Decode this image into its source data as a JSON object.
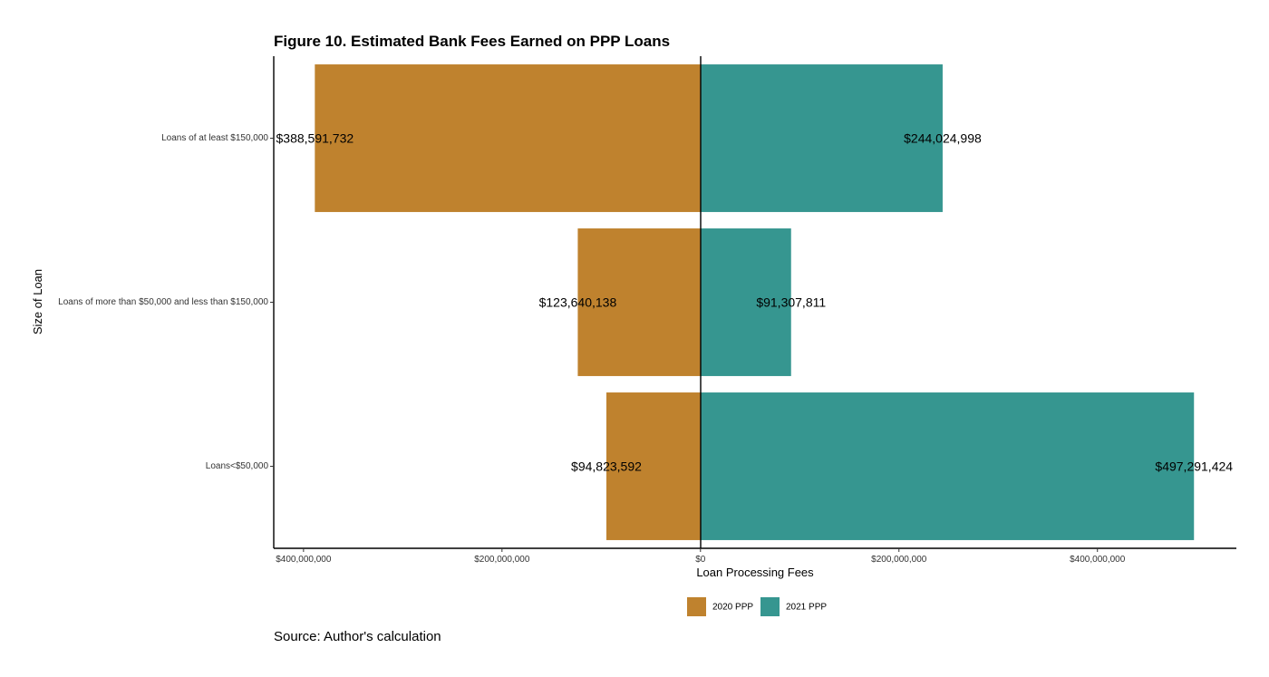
{
  "chart_data": {
    "type": "bar",
    "orientation": "horizontal",
    "layout": "diverging",
    "title": "Figure 10. Estimated Bank Fees Earned on PPP Loans",
    "xlabel": "Loan Processing Fees",
    "ylabel": "Size of Loan",
    "caption": "Source: Author's calculation",
    "categories": [
      "Loans of at least $150,000",
      "Loans of more than $50,000 and less than $150,000",
      "Loans<$50,000"
    ],
    "series": [
      {
        "name": "2020 PPP",
        "color": "#bf822e",
        "direction": "left",
        "values": [
          388591732,
          123640138,
          94823592
        ],
        "labels": [
          "$388,591,732",
          "$123,640,138",
          "$94,823,592"
        ]
      },
      {
        "name": "2021 PPP",
        "color": "#369690",
        "direction": "right",
        "values": [
          244024998,
          91307811,
          497291424
        ],
        "labels": [
          "$244,024,998",
          "$91,307,811",
          "$497,291,424"
        ]
      }
    ],
    "xlim": [
      -430000000,
      540000000
    ],
    "x_ticks": [
      -400000000,
      -200000000,
      0,
      200000000,
      400000000
    ],
    "x_tick_labels": [
      "$400,000,000",
      "$200,000,000",
      "$0",
      "$200,000,000",
      "$400,000,000"
    ],
    "legend_position": "bottom",
    "grid": false
  }
}
